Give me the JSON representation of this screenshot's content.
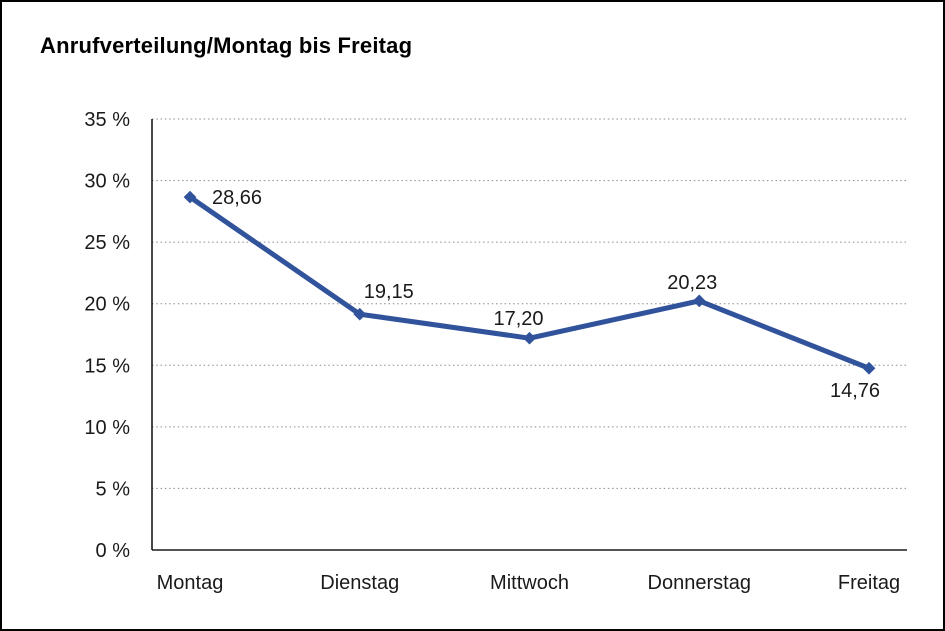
{
  "page": {
    "title": "Anrufverteilung/Montag bis Freitag"
  },
  "chart_data": {
    "type": "line",
    "title": "Anrufverteilung/Montag bis Freitag",
    "categories": [
      "Montag",
      "Dienstag",
      "Mittwoch",
      "Donnerstag",
      "Freitag"
    ],
    "values": [
      28.66,
      19.15,
      17.2,
      20.23,
      14.76
    ],
    "value_labels": [
      "28,66",
      "19,15",
      "17,20",
      "20,23",
      "14,76"
    ],
    "xlabel": "",
    "ylabel": "",
    "ylim": [
      0,
      35
    ],
    "ytick_step": 5,
    "ytick_labels": [
      "0 %",
      "5 %",
      "10 %",
      "15 %",
      "20 %",
      "25 %",
      "30 %",
      "35 %"
    ],
    "grid": "dotted-horizontal",
    "legend": "none",
    "line_color": "#31539B",
    "axis_color": "#1a1a1a",
    "grid_color": "#8c8c8c",
    "text_color": "#1a1a1a"
  }
}
